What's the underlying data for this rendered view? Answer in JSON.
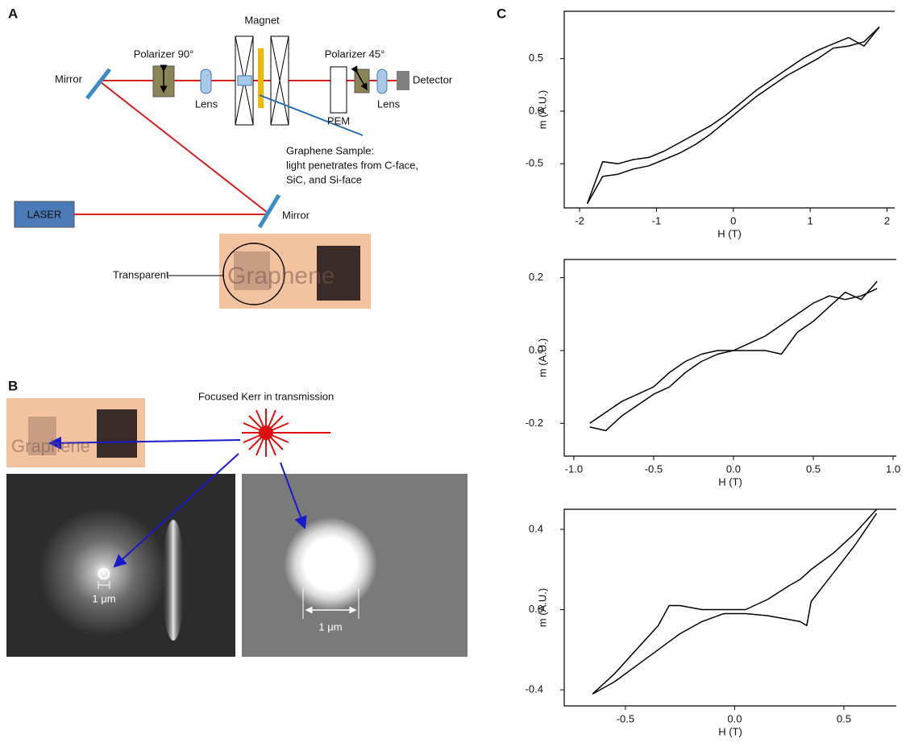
{
  "panel_labels": [
    "A",
    "B",
    "C"
  ],
  "diagram": {
    "mirror_1": "Mirror",
    "polarizer_90": "Polarizer 90°",
    "lens_1": "Lens",
    "magnet": "Magnet",
    "polarizer_45": "Polarizer 45°",
    "lens_2": "Lens",
    "detector": "Detector",
    "pem": "PEM",
    "sample_note": [
      "Graphene Sample:",
      "light penetrates from C-face,",
      "SiC, and Si-face"
    ],
    "laser": "LASER",
    "mirror_2": "Mirror",
    "transparent": "Transparent",
    "graphene": "Graphene"
  },
  "panel_b": {
    "title": "Focused Kerr in transmission",
    "graphene": "Graphene",
    "scale_left": "1 μm",
    "scale_right": "1 μm"
  },
  "chart_data": [
    {
      "type": "line",
      "xlabel": "H (T)",
      "ylabel": "m (A.U.)",
      "x": [
        -1.9,
        -1.7,
        -1.5,
        -1.3,
        -1.1,
        -0.9,
        -0.7,
        -0.5,
        -0.3,
        -0.1,
        0.1,
        0.3,
        0.5,
        0.7,
        0.9,
        1.1,
        1.3,
        1.5,
        1.7,
        1.9
      ],
      "series": [
        {
          "color": "#000000",
          "values": [
            -0.88,
            -0.48,
            -0.5,
            -0.46,
            -0.44,
            -0.38,
            -0.3,
            -0.22,
            -0.14,
            -0.04,
            0.08,
            0.2,
            0.3,
            0.4,
            0.5,
            0.58,
            0.64,
            0.7,
            0.62,
            0.8
          ]
        },
        {
          "color": "#000000",
          "values": [
            -0.88,
            -0.62,
            -0.6,
            -0.55,
            -0.52,
            -0.46,
            -0.4,
            -0.32,
            -0.22,
            -0.1,
            0.02,
            0.14,
            0.24,
            0.34,
            0.42,
            0.5,
            0.6,
            0.62,
            0.66,
            0.8
          ]
        }
      ],
      "xlim": [
        -2.2,
        2.1
      ],
      "ylim": [
        -0.92,
        0.95
      ],
      "xticks": [
        -2,
        -1,
        0,
        1,
        2
      ],
      "yticks": [
        -0.5,
        {
          "value": 0,
          "label": "0.0"
        },
        0.5
      ]
    },
    {
      "type": "line",
      "xlabel": "H (T)",
      "ylabel": "m (A.U.)",
      "x": [
        -0.9,
        -0.8,
        -0.7,
        -0.6,
        -0.5,
        -0.4,
        -0.3,
        -0.2,
        -0.1,
        0,
        0.1,
        0.2,
        0.3,
        0.4,
        0.5,
        0.6,
        0.7,
        0.8,
        0.9
      ],
      "series": [
        {
          "color": "#000000",
          "values": [
            -0.2,
            -0.17,
            -0.14,
            -0.12,
            -0.1,
            -0.06,
            -0.03,
            -0.01,
            0.0,
            0.0,
            0.02,
            0.04,
            0.07,
            0.1,
            0.13,
            0.15,
            0.14,
            0.15,
            0.17
          ]
        },
        {
          "color": "#000000",
          "values": [
            -0.21,
            -0.22,
            -0.18,
            -0.15,
            -0.12,
            -0.1,
            -0.06,
            -0.03,
            -0.01,
            0.0,
            0.0,
            0.0,
            -0.01,
            0.05,
            0.08,
            0.12,
            0.16,
            0.14,
            0.19
          ]
        }
      ],
      "xlim": [
        -1.06,
        1.02
      ],
      "ylim": [
        -0.29,
        0.25
      ],
      "xticks": [
        {
          "value": -1,
          "label": "-1.0"
        },
        -0.5,
        {
          "value": 0,
          "label": "0.0"
        },
        0.5,
        {
          "value": 1,
          "label": "1.0"
        }
      ],
      "yticks": [
        -0.2,
        {
          "value": 0,
          "label": "0.0"
        },
        0.2
      ]
    },
    {
      "type": "line",
      "xlabel": "H (T)",
      "ylabel": "m (A.U.)",
      "x": [
        -0.65,
        -0.55,
        -0.45,
        -0.35,
        -0.3,
        -0.25,
        -0.15,
        -0.05,
        0.05,
        0.15,
        0.25,
        0.3,
        0.33,
        0.35,
        0.45,
        0.55,
        0.65
      ],
      "series": [
        {
          "color": "#000000",
          "values": [
            -0.42,
            -0.32,
            -0.2,
            -0.08,
            0.02,
            0.02,
            0.0,
            0.0,
            0.0,
            0.05,
            0.12,
            0.15,
            0.18,
            0.2,
            0.28,
            0.38,
            0.5
          ]
        },
        {
          "color": "#000000",
          "values": [
            -0.42,
            -0.36,
            -0.28,
            -0.2,
            -0.16,
            -0.12,
            -0.06,
            -0.02,
            -0.02,
            -0.03,
            -0.05,
            -0.06,
            -0.08,
            0.04,
            0.18,
            0.32,
            0.48
          ]
        }
      ],
      "xlim": [
        -0.78,
        0.74
      ],
      "ylim": [
        -0.48,
        0.5
      ],
      "xticks": [
        -0.5,
        {
          "value": 0,
          "label": "0.0"
        },
        0.5
      ],
      "yticks": [
        -0.4,
        {
          "value": 0,
          "label": "0.0"
        },
        0.4
      ]
    }
  ]
}
